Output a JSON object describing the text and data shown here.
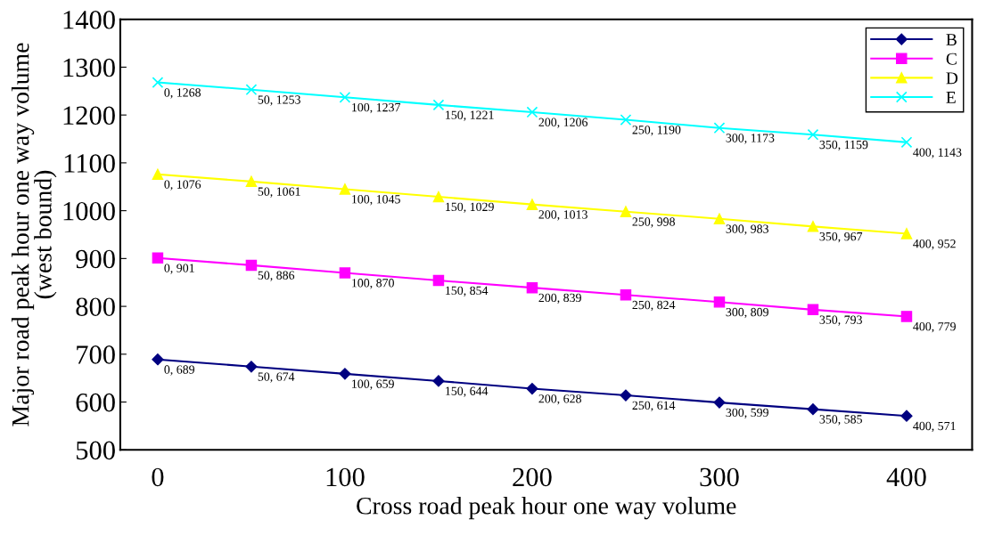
{
  "chart_data": {
    "type": "line",
    "xlabel": "Cross road peak hour one way volume",
    "ylabel": "Major road peak hour one way volume\n(west bound)",
    "x": [
      0,
      50,
      100,
      150,
      200,
      250,
      300,
      350,
      400
    ],
    "series": [
      {
        "name": "B",
        "color": "#000080",
        "marker": "diamond",
        "values": [
          689,
          674,
          659,
          644,
          628,
          614,
          599,
          585,
          571
        ],
        "value_labels": [
          "0, 689",
          "50, 674",
          "100, 659",
          "150, 644",
          "200, 628",
          "250, 614",
          "300, 599",
          "350, 585",
          "400, 571"
        ]
      },
      {
        "name": "C",
        "color": "#ff00ff",
        "marker": "square",
        "values": [
          901,
          886,
          870,
          854,
          839,
          824,
          809,
          793,
          779
        ],
        "value_labels": [
          "0, 901",
          "50, 886",
          "100, 870",
          "150, 854",
          "200, 839",
          "250, 824",
          "300, 809",
          "350, 793",
          "400, 779"
        ]
      },
      {
        "name": "D",
        "color": "#ffff00",
        "marker": "triangle",
        "values": [
          1076,
          1061,
          1045,
          1029,
          1013,
          998,
          983,
          967,
          952
        ],
        "value_labels": [
          "0, 1076",
          "50, 1061",
          "100, 1045",
          "150, 1029",
          "200, 1013",
          "250, 998",
          "300, 983",
          "350, 967",
          "400, 952"
        ]
      },
      {
        "name": "E",
        "color": "#00ffff",
        "marker": "cross",
        "values": [
          1268,
          1253,
          1237,
          1221,
          1206,
          1190,
          1173,
          1159,
          1143
        ],
        "value_labels": [
          "0, 1268",
          "50, 1253",
          "100, 1237",
          "150, 1221",
          "200, 1206",
          "250, 1190",
          "300, 1173",
          "350, 1159",
          "400, 1143"
        ]
      }
    ],
    "xlim": [
      -20,
      435
    ],
    "xticks": [
      0,
      100,
      200,
      300,
      400
    ],
    "ylim": [
      500,
      1400
    ],
    "yticks": [
      500,
      600,
      700,
      800,
      900,
      1000,
      1100,
      1200,
      1300,
      1400
    ],
    "grid": false,
    "legend": "top right",
    "line_style": "solid"
  }
}
